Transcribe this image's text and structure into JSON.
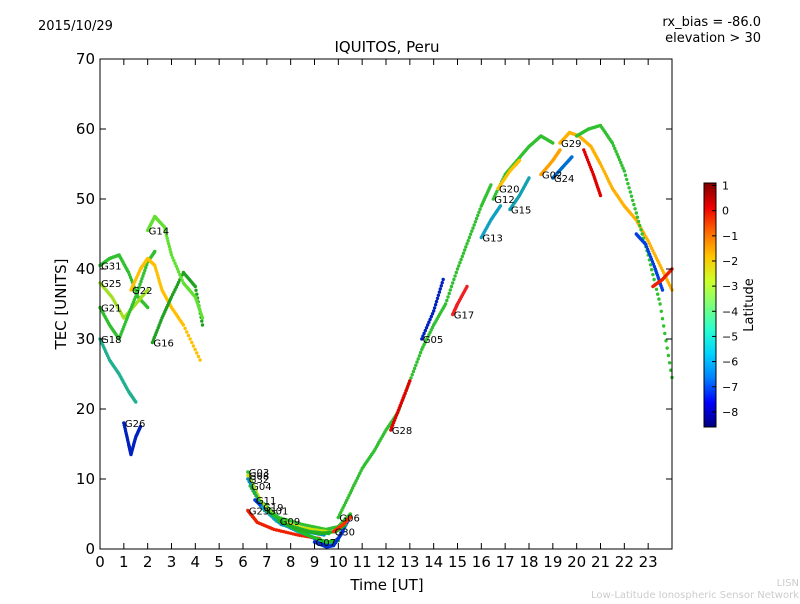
{
  "header": {
    "date": "2015/10/29",
    "bias": "rx_bias = -86.0",
    "elevation": "elevation > 30"
  },
  "footer": {
    "line1": "LISN",
    "line2": "Low-Latitude Ionospheric Sensor Network"
  },
  "chart_data": {
    "type": "scatter",
    "title": "IQUITOS, Peru",
    "xlabel": "Time [UT]",
    "ylabel": "TEC [UNITS]",
    "xlim": [
      0,
      24
    ],
    "ylim": [
      0,
      70
    ],
    "xticks": [
      "0",
      "1",
      "2",
      "3",
      "4",
      "5",
      "6",
      "7",
      "8",
      "9",
      "10",
      "11",
      "12",
      "13",
      "14",
      "15",
      "16",
      "17",
      "18",
      "19",
      "20",
      "21",
      "22",
      "23"
    ],
    "yticks": [
      "0",
      "10",
      "20",
      "30",
      "40",
      "50",
      "60",
      "70"
    ],
    "grid": false,
    "colorbar": {
      "label": "Latitude",
      "ticks": [
        "1",
        "0",
        "−1",
        "−2",
        "−3",
        "−4",
        "−5",
        "−6",
        "−7",
        "−8"
      ],
      "range": [
        -8.6,
        1.1
      ],
      "colors": [
        "#00007f",
        "#0000ff",
        "#0080ff",
        "#00d4ff",
        "#29ffce",
        "#7dff7a",
        "#ceff29",
        "#ffc400",
        "#ff6800",
        "#ee0000",
        "#7f0000"
      ]
    },
    "series": [
      {
        "name": "G31",
        "lat": -3.2,
        "color": "#30c030",
        "points": [
          [
            0.0,
            40.5
          ],
          [
            0.4,
            41.5
          ],
          [
            0.8,
            42.0
          ],
          [
            1.2,
            39.5
          ],
          [
            1.6,
            36.0
          ],
          [
            2.0,
            34.5
          ]
        ]
      },
      {
        "name": "G25",
        "lat": -2.5,
        "color": "#a0e020",
        "points": [
          [
            0.0,
            38.0
          ],
          [
            0.5,
            36.0
          ],
          [
            1.0,
            33.0
          ],
          [
            1.5,
            35.0
          ],
          [
            2.0,
            37.0
          ]
        ]
      },
      {
        "name": "G21",
        "lat": -3.5,
        "color": "#30c030",
        "points": [
          [
            0.0,
            34.5
          ],
          [
            0.4,
            32.0
          ],
          [
            0.8,
            30.0
          ],
          [
            1.2,
            33.5
          ],
          [
            1.6,
            37.0
          ],
          [
            2.0,
            41.0
          ],
          [
            2.3,
            42.5
          ]
        ]
      },
      {
        "name": "G18",
        "lat": -5.5,
        "color": "#20b090",
        "points": [
          [
            0.0,
            30.0
          ],
          [
            0.4,
            27.0
          ],
          [
            0.8,
            25.0
          ],
          [
            1.2,
            22.5
          ],
          [
            1.5,
            21.0
          ]
        ]
      },
      {
        "name": "G22",
        "lat": -1.5,
        "color": "#ffc000",
        "points": [
          [
            1.3,
            37.0
          ],
          [
            1.7,
            40.0
          ],
          [
            2.0,
            41.5
          ],
          [
            2.3,
            40.5
          ],
          [
            2.6,
            37.0
          ],
          [
            3.0,
            34.5
          ],
          [
            3.5,
            32.0
          ],
          [
            4.2,
            27.0
          ]
        ]
      },
      {
        "name": "G26",
        "lat": -8.0,
        "color": "#0020c0",
        "points": [
          [
            1.0,
            18.0
          ],
          [
            1.2,
            15.0
          ],
          [
            1.3,
            13.5
          ],
          [
            1.5,
            16.0
          ],
          [
            1.7,
            17.5
          ]
        ]
      },
      {
        "name": "G16",
        "lat": -3.5,
        "color": "#20a020",
        "points": [
          [
            2.2,
            29.5
          ],
          [
            2.6,
            33.0
          ],
          [
            3.0,
            36.0
          ],
          [
            3.5,
            39.5
          ],
          [
            4.0,
            37.5
          ],
          [
            4.3,
            32.0
          ]
        ]
      },
      {
        "name": "G14",
        "lat": -2.8,
        "color": "#60e030",
        "points": [
          [
            2.0,
            45.5
          ],
          [
            2.3,
            47.5
          ],
          [
            2.7,
            46.0
          ],
          [
            3.0,
            42.0
          ],
          [
            3.5,
            38.0
          ],
          [
            4.0,
            36.0
          ],
          [
            4.3,
            33.0
          ]
        ]
      },
      {
        "name": "G03",
        "lat": -3.2,
        "color": "#30c030",
        "points": [
          [
            6.2,
            11.0
          ],
          [
            6.7,
            7.0
          ],
          [
            7.5,
            4.5
          ],
          [
            8.5,
            3.5
          ],
          [
            9.5,
            2.8
          ],
          [
            10.0,
            3.2
          ],
          [
            10.5,
            5.0
          ]
        ]
      },
      {
        "name": "G08",
        "lat": -2.0,
        "color": "#d0e000",
        "points": [
          [
            6.2,
            10.5
          ],
          [
            6.8,
            6.5
          ],
          [
            7.5,
            4.0
          ],
          [
            8.5,
            3.0
          ],
          [
            9.5,
            2.5
          ]
        ]
      },
      {
        "name": "G32",
        "lat": -6.0,
        "color": "#0090c0",
        "points": [
          [
            6.2,
            10.0
          ],
          [
            6.8,
            6.0
          ],
          [
            7.6,
            3.5
          ],
          [
            8.6,
            2.5
          ],
          [
            9.4,
            2.0
          ]
        ]
      },
      {
        "name": "G04",
        "lat": -4.5,
        "color": "#20b040",
        "points": [
          [
            6.3,
            9.0
          ],
          [
            6.9,
            5.5
          ],
          [
            7.8,
            3.5
          ],
          [
            8.8,
            2.5
          ],
          [
            9.6,
            2.2
          ]
        ]
      },
      {
        "name": "G11",
        "lat": -7.5,
        "color": "#0040e0",
        "points": [
          [
            6.5,
            7.0
          ],
          [
            7.1,
            5.0
          ],
          [
            8.0,
            3.0
          ],
          [
            9.0,
            1.5
          ],
          [
            9.6,
            0.5
          ],
          [
            10.0,
            1.5
          ],
          [
            10.4,
            4.0
          ]
        ]
      },
      {
        "name": "G23",
        "lat": -0.6,
        "color": "#ee2000",
        "points": [
          [
            6.2,
            5.5
          ],
          [
            6.6,
            3.8
          ],
          [
            7.3,
            2.8
          ],
          [
            8.3,
            2.0
          ],
          [
            9.2,
            1.5
          ]
        ]
      },
      {
        "name": "G19",
        "lat": -6.0,
        "color": "#10a0c0",
        "points": [
          [
            6.8,
            6.0
          ],
          [
            7.4,
            4.0
          ],
          [
            8.3,
            2.5
          ],
          [
            9.3,
            1.2
          ],
          [
            9.8,
            0.8
          ]
        ]
      },
      {
        "name": "G01",
        "lat": -4.8,
        "color": "#20c020",
        "points": [
          [
            7.0,
            5.5
          ],
          [
            7.8,
            3.5
          ],
          [
            8.7,
            2.0
          ],
          [
            9.5,
            1.0
          ],
          [
            10.0,
            1.2
          ]
        ]
      },
      {
        "name": "G09",
        "lat": -4.0,
        "color": "#20b020",
        "points": [
          [
            7.5,
            4.0
          ],
          [
            8.3,
            2.8
          ],
          [
            9.2,
            2.2
          ],
          [
            9.9,
            2.5
          ],
          [
            10.3,
            3.5
          ]
        ]
      },
      {
        "name": "G07",
        "lat": -8.0,
        "color": "#0030d0",
        "points": [
          [
            9.0,
            1.0
          ],
          [
            9.5,
            0.3
          ],
          [
            9.8,
            0.5
          ],
          [
            10.2,
            2.5
          ]
        ]
      },
      {
        "name": "G30",
        "lat": -0.6,
        "color": "#ff3000",
        "points": [
          [
            9.8,
            2.5
          ],
          [
            10.2,
            3.5
          ],
          [
            10.5,
            4.5
          ]
        ]
      },
      {
        "name": "G06",
        "lat": -3.5,
        "color": "#30c030",
        "points": [
          [
            10.0,
            4.5
          ],
          [
            10.5,
            8.0
          ],
          [
            11.0,
            11.5
          ],
          [
            11.5,
            14.0
          ],
          [
            12.0,
            17.0
          ],
          [
            12.5,
            19.5
          ],
          [
            13.0,
            24.0
          ],
          [
            13.5,
            28.5
          ],
          [
            14.0,
            32.0
          ],
          [
            14.5,
            35.0
          ],
          [
            15.0,
            40.0
          ],
          [
            15.5,
            44.5
          ],
          [
            16.0,
            49.0
          ],
          [
            16.4,
            52.0
          ]
        ]
      },
      {
        "name": "G28",
        "lat": -0.3,
        "color": "#e00000",
        "points": [
          [
            12.2,
            17.0
          ],
          [
            12.6,
            20.5
          ],
          [
            13.0,
            24.0
          ]
        ]
      },
      {
        "name": "G05",
        "lat": -8.2,
        "color": "#0020c0",
        "points": [
          [
            13.5,
            30.0
          ],
          [
            14.0,
            34.0
          ],
          [
            14.4,
            38.5
          ]
        ]
      },
      {
        "name": "G17",
        "lat": -0.6,
        "color": "#ee2020",
        "points": [
          [
            14.8,
            33.5
          ],
          [
            15.0,
            35.0
          ],
          [
            15.4,
            37.5
          ]
        ]
      },
      {
        "name": "G13",
        "lat": -6.0,
        "color": "#10a0c0",
        "points": [
          [
            16.0,
            44.5
          ],
          [
            16.4,
            47.0
          ],
          [
            16.8,
            49.0
          ]
        ]
      },
      {
        "name": "G12",
        "lat": -3.5,
        "color": "#30c030",
        "points": [
          [
            16.5,
            50.0
          ],
          [
            17.0,
            53.5
          ],
          [
            17.5,
            55.5
          ],
          [
            18.0,
            57.5
          ],
          [
            18.5,
            59.0
          ],
          [
            19.0,
            58.0
          ]
        ]
      },
      {
        "name": "G20",
        "lat": -1.5,
        "color": "#ffc000",
        "points": [
          [
            16.7,
            51.5
          ],
          [
            17.2,
            54.0
          ],
          [
            17.6,
            55.5
          ]
        ]
      },
      {
        "name": "G15",
        "lat": -5.8,
        "color": "#10a0b0",
        "points": [
          [
            17.2,
            48.5
          ],
          [
            17.6,
            50.5
          ],
          [
            18.0,
            53.0
          ]
        ]
      },
      {
        "name": "G02",
        "lat": -1.0,
        "color": "#ffa000",
        "points": [
          [
            18.5,
            53.5
          ],
          [
            19.0,
            55.5
          ],
          [
            19.3,
            57.0
          ]
        ]
      },
      {
        "name": "G24",
        "lat": -6.5,
        "color": "#0070d0",
        "points": [
          [
            19.0,
            53.0
          ],
          [
            19.4,
            54.5
          ],
          [
            19.8,
            56.0
          ]
        ]
      },
      {
        "name": "G29",
        "lat": -1.2,
        "color": "#ffb000",
        "points": [
          [
            19.3,
            58.0
          ],
          [
            19.7,
            59.5
          ],
          [
            20.1,
            59.0
          ],
          [
            20.6,
            57.5
          ],
          [
            21.0,
            55.0
          ],
          [
            21.5,
            51.5
          ],
          [
            22.0,
            49.0
          ],
          [
            22.5,
            47.0
          ],
          [
            23.0,
            44.0
          ],
          [
            23.5,
            40.5
          ],
          [
            24.0,
            37.0
          ]
        ]
      },
      {
        "name": "",
        "lat": -3.5,
        "color": "#30c030",
        "points": [
          [
            20.0,
            59.0
          ],
          [
            20.5,
            60.0
          ],
          [
            21.0,
            60.5
          ],
          [
            21.5,
            58.0
          ],
          [
            22.0,
            54.0
          ],
          [
            22.5,
            48.0
          ],
          [
            23.0,
            42.0
          ],
          [
            23.5,
            35.0
          ],
          [
            24.0,
            24.5
          ]
        ]
      },
      {
        "name": "",
        "lat": -7.5,
        "color": "#0040e0",
        "points": [
          [
            22.5,
            45.0
          ],
          [
            22.9,
            43.5
          ],
          [
            23.3,
            40.0
          ],
          [
            23.6,
            37.0
          ]
        ]
      },
      {
        "name": "",
        "lat": -0.2,
        "color": "#e00000",
        "points": [
          [
            20.3,
            57.0
          ],
          [
            20.7,
            53.5
          ],
          [
            21.0,
            50.5
          ]
        ]
      },
      {
        "name": "",
        "lat": -0.6,
        "color": "#ee2000",
        "points": [
          [
            23.2,
            37.5
          ],
          [
            23.6,
            38.5
          ],
          [
            24.0,
            40.0
          ]
        ]
      }
    ]
  }
}
